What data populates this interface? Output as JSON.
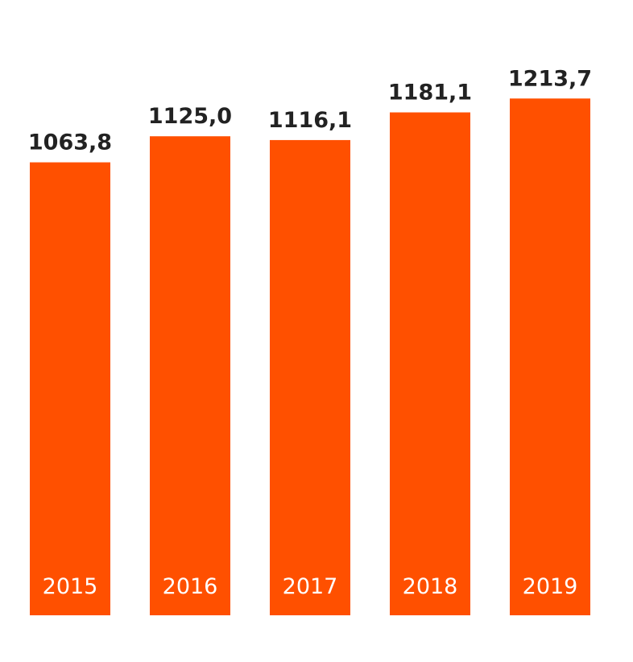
{
  "chart_data": {
    "type": "bar",
    "categories": [
      "2015",
      "2016",
      "2017",
      "2018",
      "2019"
    ],
    "values": [
      1063.8,
      1125.0,
      1116.1,
      1181.1,
      1213.7
    ],
    "value_labels": [
      "1063,8",
      "1125,0",
      "1116,1",
      "1181,1",
      "1213,7"
    ],
    "title": "",
    "xlabel": "",
    "ylabel": "",
    "ylim": [
      0,
      1360
    ],
    "grid": false,
    "legend": "none",
    "bar_color": "#FF5000",
    "category_label_color": "#FFFFFF",
    "value_label_color": "#222222"
  }
}
